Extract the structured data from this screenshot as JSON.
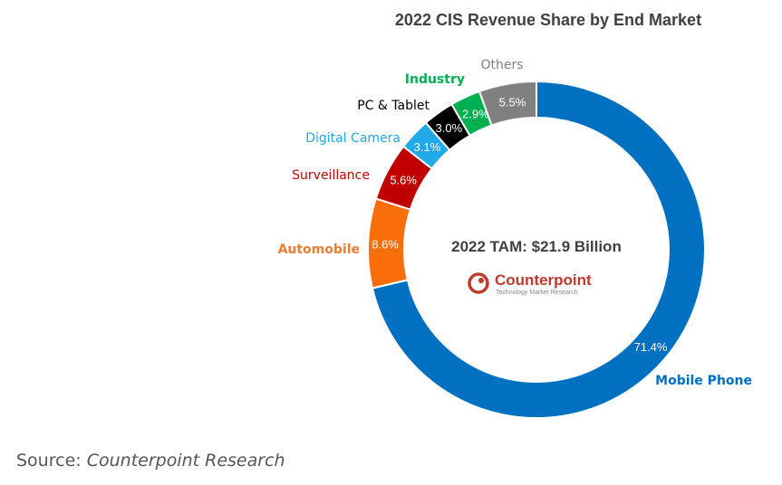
{
  "chart_data": {
    "type": "pie",
    "style": "donut",
    "title": "2022 CIS Revenue Share by End Market",
    "center_label": "2022 TAM: $21.9 Billion",
    "slices": [
      {
        "name": "Mobile Phone",
        "value": 71.4,
        "label": "71.4%",
        "color": "#0070c0"
      },
      {
        "name": "Automobile",
        "value": 8.6,
        "label": "8.6%",
        "color": "#fa6e0a"
      },
      {
        "name": "Surveillance",
        "value": 5.6,
        "label": "5.6%",
        "color": "#c00000"
      },
      {
        "name": "Digital Camera",
        "value": 3.1,
        "label": "3.1%",
        "color": "#21a9e8"
      },
      {
        "name": "PC & Tablet",
        "value": 3.0,
        "label": "3.0%",
        "color": "#000000"
      },
      {
        "name": "Industry",
        "value": 2.9,
        "label": "2.9%",
        "color": "#00b050"
      },
      {
        "name": "Others",
        "value": 5.5,
        "label": "5.5%",
        "color": "#808080"
      }
    ],
    "name_colors": {
      "Mobile Phone": "#0070c0",
      "Automobile": "#ed7d31",
      "Surveillance": "#c00000",
      "Digital Camera": "#21a9e8",
      "PC & Tablet": "#000000",
      "Industry": "#00b050",
      "Others": "#808080"
    }
  },
  "logo": {
    "name": "Counterpoint",
    "tagline": "Technology Market Research",
    "color": "#c0392b"
  },
  "source": {
    "prefix": "Source:",
    "org": "Counterpoint Research"
  }
}
